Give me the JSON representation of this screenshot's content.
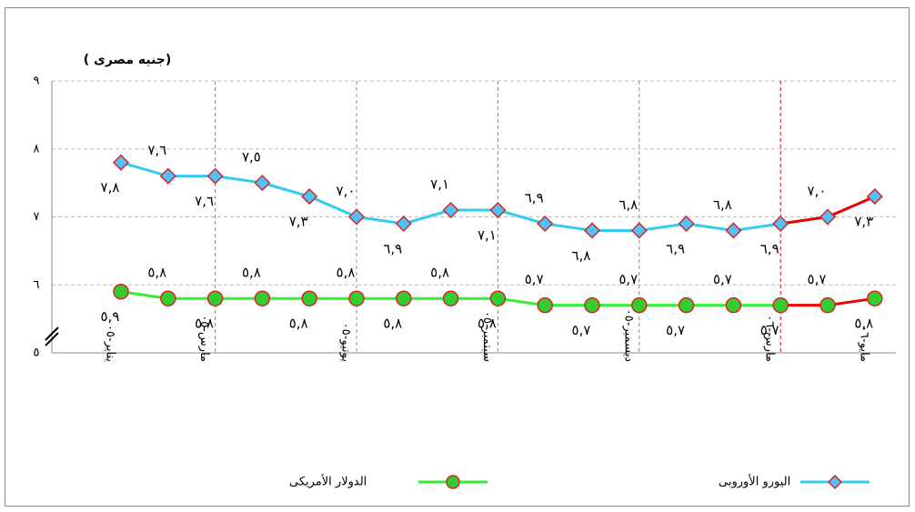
{
  "chart_data": {
    "type": "line",
    "y_label": "(جنيه مصرى )",
    "categories": [
      "يناير-٠٥",
      null,
      "مارس-٠٥",
      null,
      null,
      "يونيو-٠٥",
      null,
      null,
      "سبتمبر-٠٥",
      null,
      null,
      "ديسمبر-٠٥",
      null,
      null,
      "مارس-٠٦",
      null,
      "مايو-٠٦"
    ],
    "series": [
      {
        "name": "اليورو الأوروبى",
        "color": "#33ccee",
        "marker": "diamond",
        "marker_color": "#4fc3f7",
        "values": [
          7.8,
          7.6,
          7.6,
          7.5,
          7.3,
          7.0,
          6.9,
          7.1,
          7.1,
          6.9,
          6.8,
          6.8,
          6.9,
          6.8,
          6.9,
          7.0,
          7.3
        ],
        "value_labels": [
          "٧,٨",
          "٧,٦",
          "٧,٦",
          "٧,٥",
          "٧,٣",
          "٧,٠",
          "٦,٩",
          "٧,١",
          "٧,١",
          "٦,٩",
          "٦,٨",
          "٦,٨",
          "٦,٩",
          "٦,٨",
          "٦,٩",
          "٧,٠",
          "٧,٣"
        ]
      },
      {
        "name": "الدولار الأمريكى",
        "color": "#33ee33",
        "marker": "circle",
        "marker_color": "#33cc33",
        "values": [
          5.9,
          5.8,
          5.8,
          5.8,
          5.8,
          5.8,
          5.8,
          5.8,
          5.8,
          5.7,
          5.7,
          5.7,
          5.7,
          5.7,
          5.7,
          5.7,
          5.8
        ],
        "value_labels": [
          "٥,٩",
          "٥,٨",
          "٥,٨",
          "٥,٨",
          "٥,٨",
          "٥,٨",
          "٥,٨",
          "٥,٨",
          "٥,٨",
          "٥,٧",
          "٥,٧",
          "٥,٧",
          "٥,٧",
          "٥,٧",
          "٥,٧",
          "٥,٧",
          "٥,٨"
        ]
      }
    ],
    "ylim": [
      5,
      9
    ],
    "yticks": [
      {
        "value": 5,
        "label": "٥"
      },
      {
        "value": 6,
        "label": "٦"
      },
      {
        "value": 7,
        "label": "٧"
      },
      {
        "value": 8,
        "label": "٨"
      },
      {
        "value": 9,
        "label": "٩"
      }
    ],
    "grid": true,
    "legend": "bottom"
  }
}
